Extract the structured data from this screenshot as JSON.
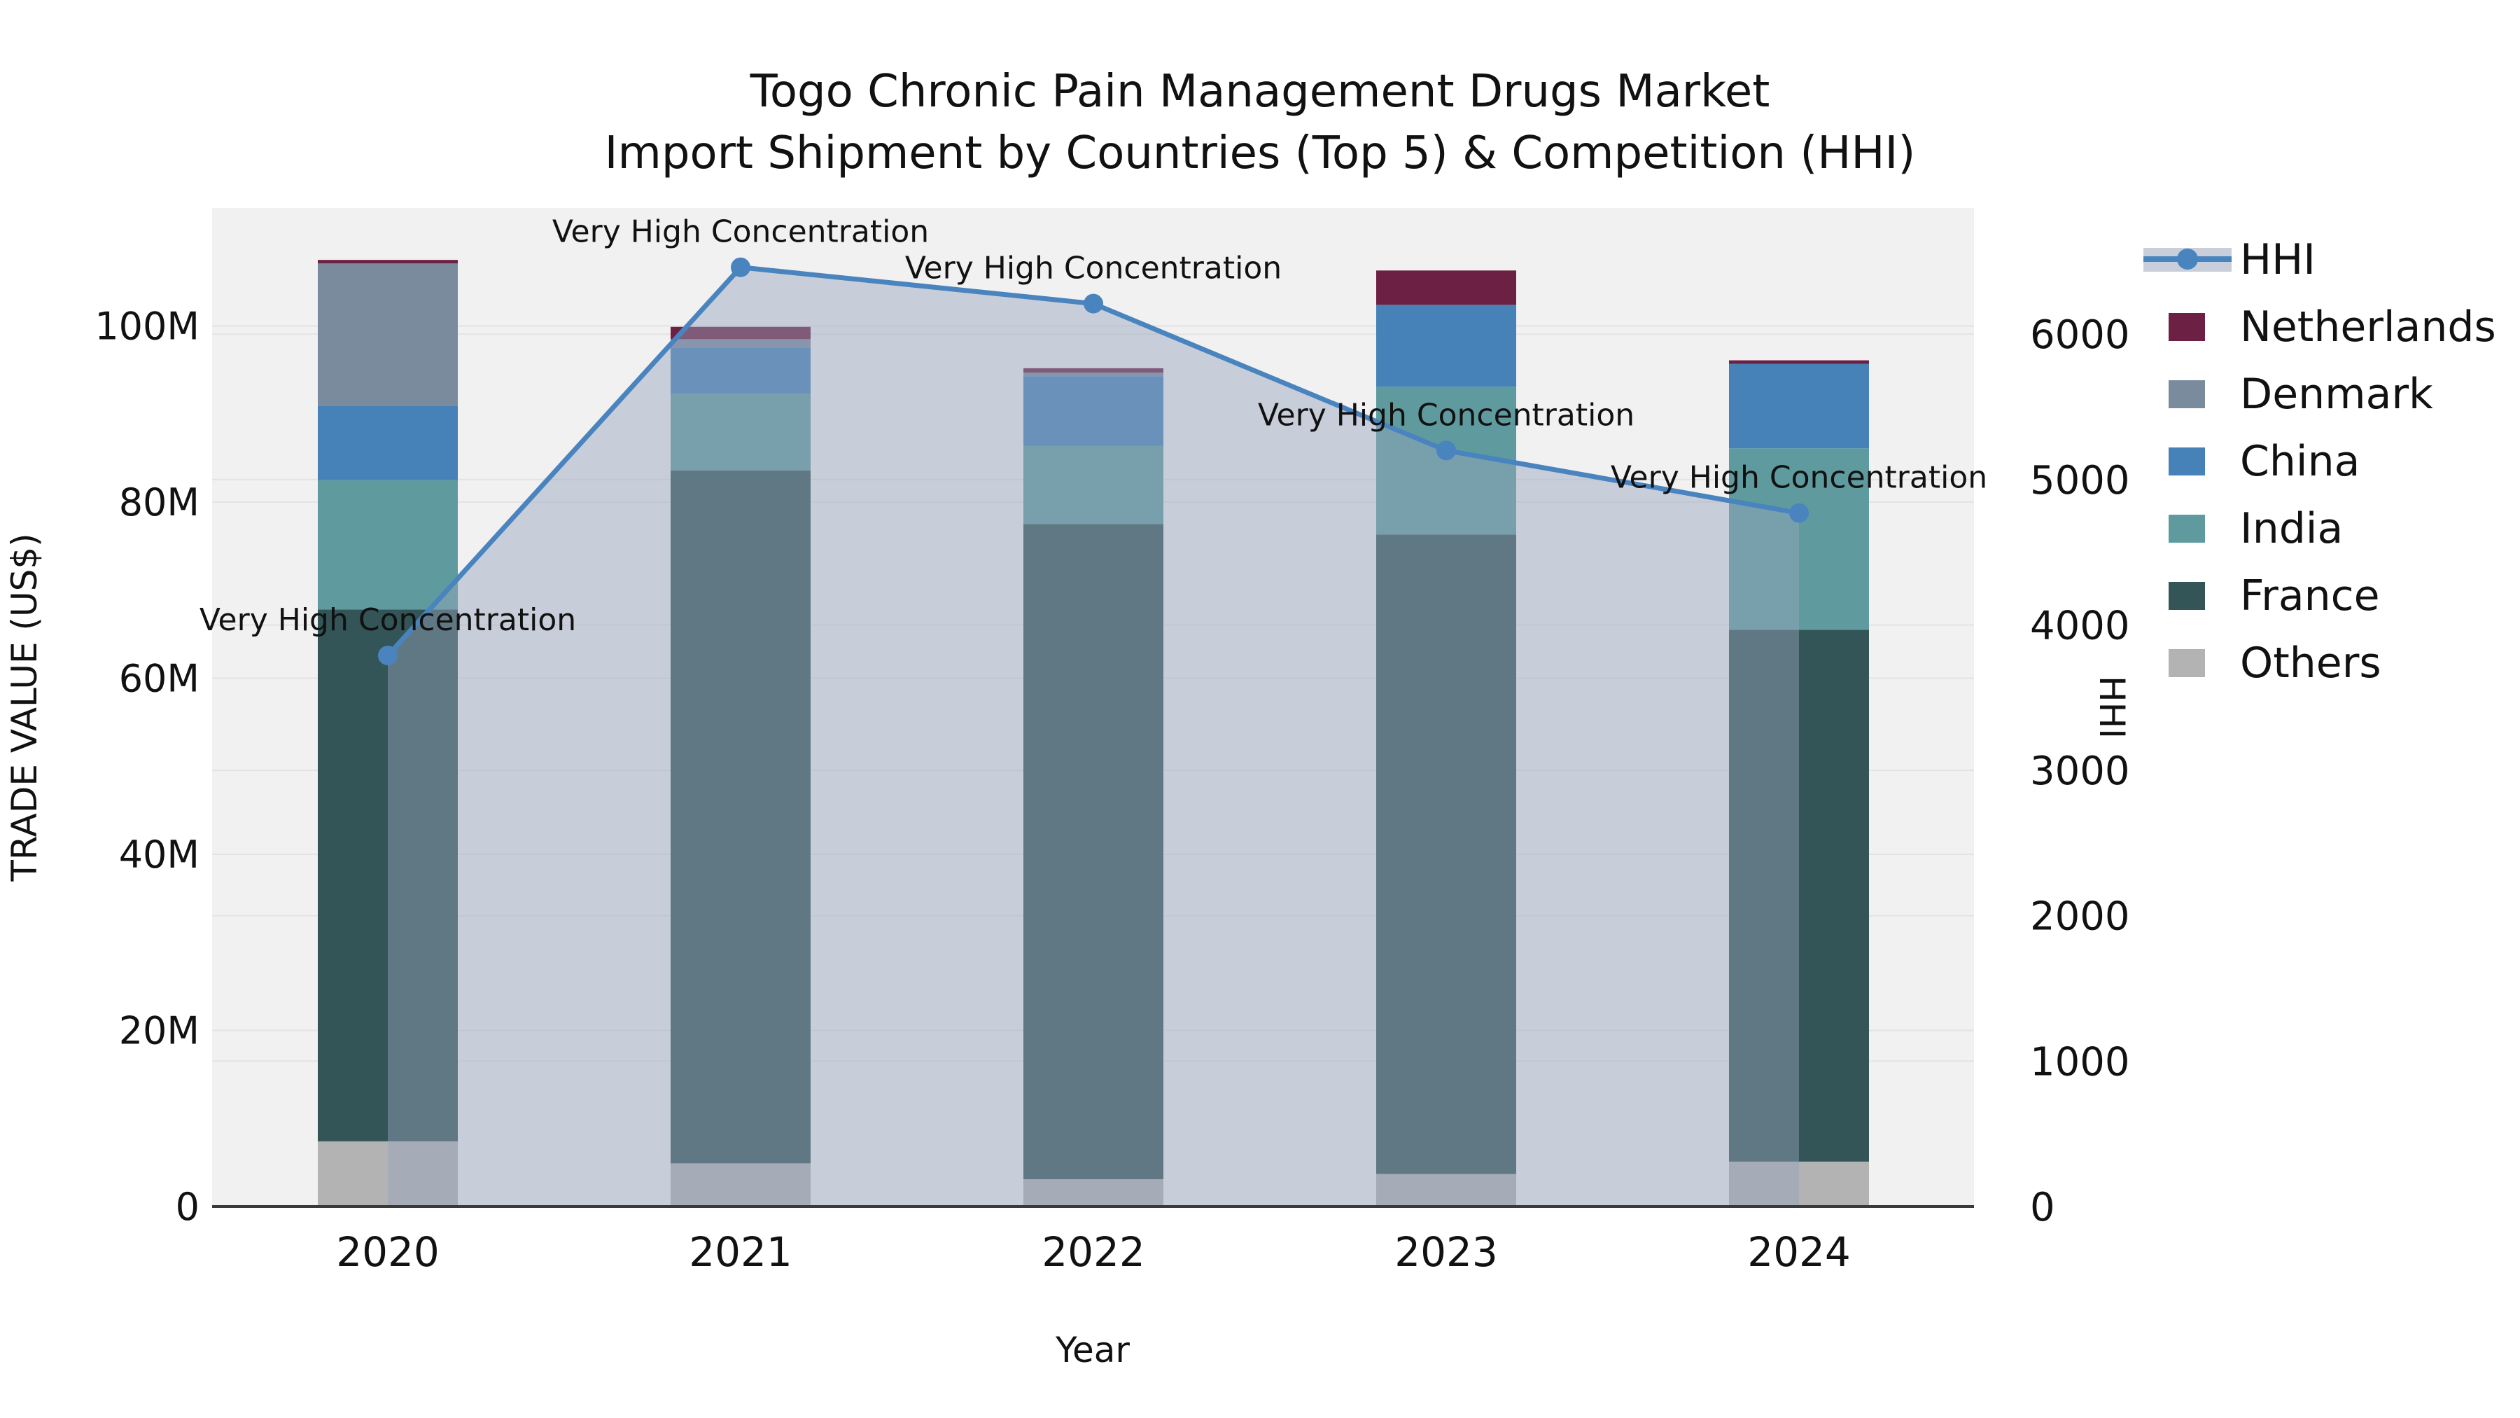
{
  "chart_data": {
    "type": "bar+line",
    "title_line1": "Togo Chronic Pain Management Drugs Market",
    "title_line2": "Import Shipment by Countries (Top 5) & Competition (HHI)",
    "xlabel": "Year",
    "ylabel_left": "TRADE VALUE (US$)",
    "ylabel_right": "HHI",
    "categories": [
      "2020",
      "2021",
      "2022",
      "2023",
      "2024"
    ],
    "bar_unit": "million US$",
    "bar_series": [
      {
        "name": "Others",
        "color": "#b3b3b3",
        "values": [
          7.4,
          4.9,
          3.1,
          3.7,
          5.1
        ]
      },
      {
        "name": "France",
        "color": "#335557",
        "values": [
          60.4,
          78.7,
          74.4,
          72.6,
          60.4
        ]
      },
      {
        "name": "India",
        "color": "#5f9b9e",
        "values": [
          14.7,
          8.7,
          8.9,
          16.8,
          20.6
        ]
      },
      {
        "name": "China",
        "color": "#4682b8",
        "values": [
          8.4,
          5.2,
          7.9,
          9.3,
          9.6
        ]
      },
      {
        "name": "Denmark",
        "color": "#7b8b9e",
        "values": [
          16.2,
          1.0,
          0.4,
          0,
          0
        ]
      },
      {
        "name": "Netherlands",
        "color": "#6c2043",
        "values": [
          0.4,
          1.4,
          0.5,
          3.9,
          0.4
        ]
      }
    ],
    "bar_totals": [
      107.5,
      99.9,
      95.2,
      106.3,
      96.1
    ],
    "line_series": {
      "name": "HHI",
      "color": "#4a84bf",
      "values": [
        3790,
        6460,
        6210,
        5200,
        4770
      ]
    },
    "annotations": [
      {
        "year": "2020",
        "text": "Very High Concentration"
      },
      {
        "year": "2021",
        "text": "Very High Concentration"
      },
      {
        "year": "2022",
        "text": "Very High Concentration"
      },
      {
        "year": "2023",
        "text": "Very High Concentration"
      },
      {
        "year": "2024",
        "text": "Very High Concentration"
      }
    ],
    "left_axis": {
      "tick_labels": [
        "0",
        "20M",
        "40M",
        "60M",
        "80M",
        "100M"
      ],
      "tick_values": [
        0,
        20,
        40,
        60,
        80,
        100
      ],
      "max": 113.4
    },
    "right_axis": {
      "tick_labels": [
        "0",
        "1000",
        "2000",
        "3000",
        "4000",
        "5000",
        "6000"
      ],
      "tick_values": [
        0,
        1000,
        2000,
        3000,
        4000,
        5000,
        6000
      ],
      "max": 6868
    },
    "grid": "on",
    "legend_position": "right",
    "legend": [
      {
        "label": "HHI",
        "type": "line",
        "color": "#4a84bf"
      },
      {
        "label": "Netherlands",
        "type": "swatch",
        "color": "#6c2043"
      },
      {
        "label": "Denmark",
        "type": "swatch",
        "color": "#7b8b9e"
      },
      {
        "label": "China",
        "type": "swatch",
        "color": "#4682b8"
      },
      {
        "label": "India",
        "type": "swatch",
        "color": "#5f9b9e"
      },
      {
        "label": "France",
        "type": "swatch",
        "color": "#335557"
      },
      {
        "label": "Others",
        "type": "swatch",
        "color": "#b3b3b3"
      }
    ]
  },
  "colors": {
    "plot_bg": "#f1f1f1",
    "area_fill": "rgba(151,165,188,0.45)",
    "legend_band": "#c9cfda",
    "grid_line": "#e3e3e3",
    "axis_line": "#3a3a3a",
    "text": "#111111"
  }
}
